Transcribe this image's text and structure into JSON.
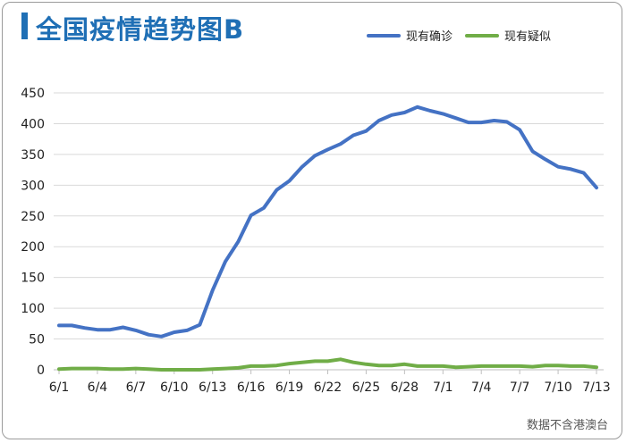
{
  "header": {
    "title": "全国疫情趋势图B"
  },
  "footer": {
    "source_note": "数据不含港澳台"
  },
  "chart_data": {
    "type": "line",
    "title": "全国疫情趋势图B",
    "xlabel": "",
    "ylabel": "",
    "ylim": [
      0,
      450
    ],
    "yticks": [
      0,
      50,
      100,
      150,
      200,
      250,
      300,
      350,
      400,
      450
    ],
    "grid": true,
    "legend_position": "top-right",
    "x": [
      "6/1",
      "6/2",
      "6/3",
      "6/4",
      "6/5",
      "6/6",
      "6/7",
      "6/8",
      "6/9",
      "6/10",
      "6/11",
      "6/12",
      "6/13",
      "6/14",
      "6/15",
      "6/16",
      "6/17",
      "6/18",
      "6/19",
      "6/20",
      "6/21",
      "6/22",
      "6/23",
      "6/24",
      "6/25",
      "6/26",
      "6/27",
      "6/28",
      "6/29",
      "6/30",
      "7/1",
      "7/2",
      "7/3",
      "7/4",
      "7/5",
      "7/6",
      "7/7",
      "7/8",
      "7/9",
      "7/10",
      "7/11",
      "7/12",
      "7/13"
    ],
    "xtick_labels": [
      "6/1",
      "6/4",
      "6/7",
      "6/10",
      "6/13",
      "6/16",
      "6/19",
      "6/22",
      "6/25",
      "6/28",
      "7/1",
      "7/4",
      "7/7",
      "7/10",
      "7/13"
    ],
    "series": [
      {
        "name": "现有确诊",
        "color": "#4472c4",
        "values": [
          72,
          72,
          68,
          65,
          65,
          69,
          64,
          57,
          54,
          61,
          64,
          73,
          129,
          176,
          208,
          251,
          263,
          292,
          307,
          330,
          348,
          358,
          367,
          381,
          388,
          405,
          414,
          418,
          427,
          421,
          416,
          409,
          402,
          402,
          405,
          403,
          390,
          355,
          342,
          330,
          326,
          320,
          296
        ]
      },
      {
        "name": "现有疑似",
        "color": "#70ad47",
        "values": [
          1,
          2,
          2,
          2,
          1,
          1,
          2,
          1,
          0,
          0,
          0,
          0,
          1,
          2,
          3,
          6,
          6,
          7,
          10,
          12,
          14,
          14,
          17,
          12,
          9,
          7,
          7,
          9,
          6,
          6,
          6,
          4,
          5,
          6,
          6,
          6,
          6,
          5,
          7,
          7,
          6,
          6,
          4
        ]
      }
    ]
  }
}
